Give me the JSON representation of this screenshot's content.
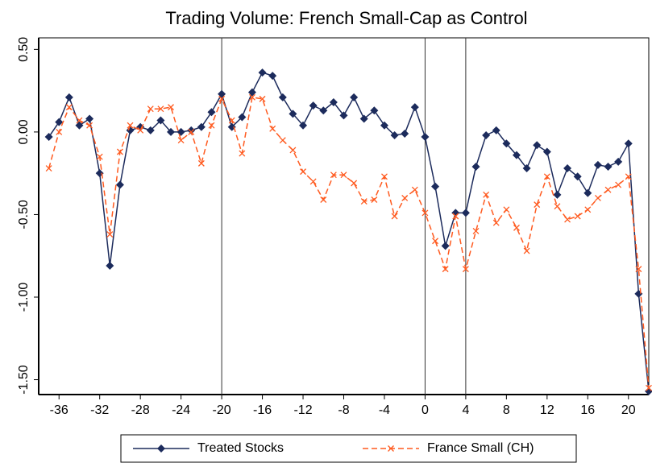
{
  "chart_data": {
    "type": "line",
    "title": "Trading Volume: French Small-Cap as Control",
    "x": [
      -37,
      -36,
      -35,
      -34,
      -33,
      -32,
      -31,
      -30,
      -29,
      -28,
      -27,
      -26,
      -25,
      -24,
      -23,
      -22,
      -21,
      -20,
      -19,
      -18,
      -17,
      -16,
      -15,
      -14,
      -13,
      -12,
      -11,
      -10,
      -9,
      -8,
      -7,
      -6,
      -5,
      -4,
      -3,
      -2,
      -1,
      0,
      1,
      2,
      3,
      4,
      5,
      6,
      7,
      8,
      9,
      10,
      11,
      12,
      13,
      14,
      15,
      16,
      17,
      18,
      19,
      20,
      21,
      22
    ],
    "series": [
      {
        "name": "Treated Stocks",
        "color": "#1c2b5c",
        "marker": "diamond",
        "dash": "solid",
        "values": [
          -0.03,
          0.06,
          0.21,
          0.04,
          0.08,
          -0.25,
          -0.81,
          -0.32,
          0.01,
          0.03,
          0.01,
          0.07,
          0.0,
          0.0,
          0.01,
          0.03,
          0.12,
          0.23,
          0.03,
          0.09,
          0.24,
          0.36,
          0.34,
          0.21,
          0.11,
          0.04,
          0.16,
          0.13,
          0.18,
          0.1,
          0.21,
          0.08,
          0.13,
          0.04,
          -0.02,
          -0.01,
          0.15,
          -0.03,
          -0.33,
          -0.69,
          -0.49,
          -0.49,
          -0.21,
          -0.02,
          0.01,
          -0.07,
          -0.14,
          -0.22,
          -0.08,
          -0.12,
          -0.38,
          -0.22,
          -0.27,
          -0.37,
          -0.2,
          -0.21,
          -0.18,
          -0.07,
          -0.98,
          -1.57
        ]
      },
      {
        "name": "France Small (CH)",
        "color": "#ff5a1f",
        "marker": "x",
        "dash": "dashed",
        "values": [
          -0.22,
          0.0,
          0.15,
          0.07,
          0.04,
          -0.15,
          -0.62,
          -0.12,
          0.04,
          0.01,
          0.14,
          0.14,
          0.15,
          -0.05,
          0.0,
          -0.19,
          0.04,
          0.2,
          0.07,
          -0.13,
          0.21,
          0.2,
          0.02,
          -0.05,
          -0.11,
          -0.24,
          -0.3,
          -0.41,
          -0.26,
          -0.26,
          -0.31,
          -0.42,
          -0.41,
          -0.27,
          -0.51,
          -0.4,
          -0.35,
          -0.49,
          -0.66,
          -0.83,
          -0.51,
          -0.83,
          -0.6,
          -0.38,
          -0.55,
          -0.47,
          -0.58,
          -0.72,
          -0.44,
          -0.27,
          -0.45,
          -0.53,
          -0.51,
          -0.47,
          -0.4,
          -0.35,
          -0.32,
          -0.27,
          -0.83,
          -1.55
        ]
      }
    ],
    "xlim": [
      -38,
      22
    ],
    "xticks": [
      -36,
      -32,
      -28,
      -24,
      -20,
      -16,
      -12,
      -8,
      -4,
      0,
      4,
      8,
      12,
      16,
      20
    ],
    "ylim": [
      -1.59,
      0.57
    ],
    "yticks": [
      {
        "value": -1.5,
        "label": "-1.50"
      },
      {
        "value": -1.0,
        "label": "-1.00"
      },
      {
        "value": -0.5,
        "label": "-0.50"
      },
      {
        "value": 0.0,
        "label": "0.00"
      },
      {
        "value": 0.5,
        "label": "0.50"
      }
    ],
    "vlines": [
      -20,
      0,
      4
    ],
    "legend": "bottom"
  }
}
